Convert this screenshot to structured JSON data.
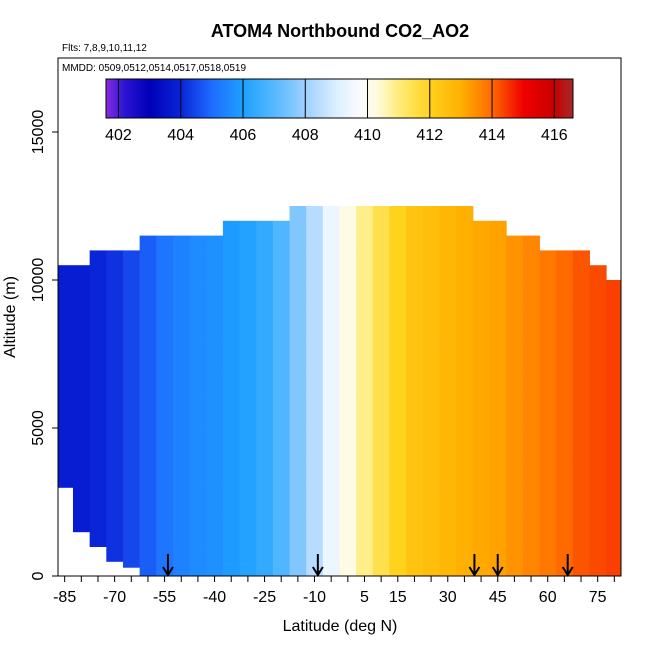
{
  "chart_data": {
    "type": "heatmap",
    "title": "ATOM4 Northbound CO2_AO2",
    "subtitle_flights": "Flts: 7,8,9,10,11,12",
    "subtitle_dates": "MMDD: 0509,0512,0514,0517,0518,0519",
    "xlabel": "Latitude (deg N)",
    "ylabel": "Altitude (m)",
    "xlim": [
      -87,
      82
    ],
    "ylim": [
      0,
      17500
    ],
    "x_ticks": [
      -85,
      -70,
      -55,
      -40,
      -25,
      -10,
      5,
      15,
      30,
      45,
      60,
      75
    ],
    "x_minor_ticks": [
      -80,
      -75,
      -65,
      -60,
      -50,
      -45,
      -35,
      -30,
      -20,
      -15,
      -5,
      0,
      10,
      20,
      25,
      35,
      40,
      50,
      55,
      65,
      70,
      80
    ],
    "y_ticks": [
      0,
      5000,
      10000,
      15000
    ],
    "colorbar": {
      "ticks": [
        402,
        404,
        406,
        408,
        410,
        412,
        414,
        416
      ],
      "range": [
        401.6,
        416.6
      ],
      "stops": [
        {
          "v": 401.6,
          "color": "#8a2be2"
        },
        {
          "v": 402.2,
          "color": "#2a14d4"
        },
        {
          "v": 403.0,
          "color": "#0000b8"
        },
        {
          "v": 404.0,
          "color": "#0a24d8"
        },
        {
          "v": 405.0,
          "color": "#1e6cff"
        },
        {
          "v": 406.0,
          "color": "#1ea0ff"
        },
        {
          "v": 407.0,
          "color": "#56b8ff"
        },
        {
          "v": 408.0,
          "color": "#9ed0ff"
        },
        {
          "v": 409.0,
          "color": "#dcefff"
        },
        {
          "v": 409.7,
          "color": "#f8fbff"
        },
        {
          "v": 410.3,
          "color": "#fffbe0"
        },
        {
          "v": 411.0,
          "color": "#ffec7a"
        },
        {
          "v": 412.0,
          "color": "#ffd21e"
        },
        {
          "v": 413.0,
          "color": "#ffb000"
        },
        {
          "v": 414.0,
          "color": "#ff6a00"
        },
        {
          "v": 415.0,
          "color": "#f00000"
        },
        {
          "v": 416.0,
          "color": "#c80000"
        },
        {
          "v": 416.6,
          "color": "#a52a2a"
        }
      ]
    },
    "profile_latitudes": [
      -85,
      -80,
      -75,
      -70,
      -65,
      -60,
      -55,
      -50,
      -45,
      -40,
      -35,
      -30,
      -25,
      -20,
      -15,
      -10,
      -5,
      0,
      5,
      10,
      15,
      20,
      25,
      30,
      35,
      40,
      45,
      50,
      55,
      60,
      65,
      70,
      75,
      80
    ],
    "profile_altitudes": [
      0,
      1000,
      2000,
      3000,
      4000,
      5000,
      6000,
      7000,
      8000,
      9000,
      10000,
      11000,
      12000
    ],
    "profile_coverage": [
      {
        "lat": -85,
        "alt_min": 3000,
        "alt_max": 10500
      },
      {
        "lat": -80,
        "alt_min": 1500,
        "alt_max": 10500
      },
      {
        "lat": -75,
        "alt_min": 1000,
        "alt_max": 11000
      },
      {
        "lat": -70,
        "alt_min": 500,
        "alt_max": 11000
      },
      {
        "lat": -65,
        "alt_min": 300,
        "alt_max": 11000
      },
      {
        "lat": -60,
        "alt_min": 0,
        "alt_max": 11500
      },
      {
        "lat": -55,
        "alt_min": 0,
        "alt_max": 11500
      },
      {
        "lat": -50,
        "alt_min": 0,
        "alt_max": 11500
      },
      {
        "lat": -45,
        "alt_min": 0,
        "alt_max": 11500
      },
      {
        "lat": -40,
        "alt_min": 0,
        "alt_max": 11500
      },
      {
        "lat": -35,
        "alt_min": 0,
        "alt_max": 12000
      },
      {
        "lat": -30,
        "alt_min": 0,
        "alt_max": 12000
      },
      {
        "lat": -25,
        "alt_min": 0,
        "alt_max": 12000
      },
      {
        "lat": -20,
        "alt_min": 0,
        "alt_max": 12000
      },
      {
        "lat": -15,
        "alt_min": 0,
        "alt_max": 12500
      },
      {
        "lat": -10,
        "alt_min": 0,
        "alt_max": 12500
      },
      {
        "lat": -5,
        "alt_min": 0,
        "alt_max": 12500
      },
      {
        "lat": 0,
        "alt_min": 0,
        "alt_max": 12500
      },
      {
        "lat": 5,
        "alt_min": 0,
        "alt_max": 12500
      },
      {
        "lat": 10,
        "alt_min": 0,
        "alt_max": 12500
      },
      {
        "lat": 15,
        "alt_min": 0,
        "alt_max": 12500
      },
      {
        "lat": 20,
        "alt_min": 0,
        "alt_max": 12500
      },
      {
        "lat": 25,
        "alt_min": 0,
        "alt_max": 12500
      },
      {
        "lat": 30,
        "alt_min": 0,
        "alt_max": 12500
      },
      {
        "lat": 35,
        "alt_min": 0,
        "alt_max": 12500
      },
      {
        "lat": 40,
        "alt_min": 0,
        "alt_max": 12000
      },
      {
        "lat": 45,
        "alt_min": 0,
        "alt_max": 12000
      },
      {
        "lat": 50,
        "alt_min": 0,
        "alt_max": 11500
      },
      {
        "lat": 55,
        "alt_min": 0,
        "alt_max": 11500
      },
      {
        "lat": 60,
        "alt_min": 0,
        "alt_max": 11000
      },
      {
        "lat": 65,
        "alt_min": 0,
        "alt_max": 11000
      },
      {
        "lat": 70,
        "alt_min": 0,
        "alt_max": 11000
      },
      {
        "lat": 75,
        "alt_min": 0,
        "alt_max": 10500
      },
      {
        "lat": 80,
        "alt_min": 0,
        "alt_max": 10000
      }
    ],
    "values_by_latitude": [
      [
        403.8,
        403.8,
        403.8,
        403.8,
        403.8,
        403.8,
        403.8,
        403.8,
        403.8,
        403.8,
        403.8,
        403.8,
        403.8
      ],
      [
        403.8,
        403.8,
        403.8,
        403.8,
        403.8,
        403.8,
        403.8,
        403.8,
        403.8,
        403.8,
        403.8,
        403.8,
        403.8
      ],
      [
        404.0,
        404.0,
        404.0,
        404.0,
        404.0,
        404.0,
        404.0,
        404.0,
        404.0,
        404.0,
        404.0,
        404.0,
        404.0
      ],
      [
        404.2,
        404.2,
        404.2,
        404.2,
        404.2,
        404.2,
        404.2,
        404.2,
        404.2,
        404.2,
        404.2,
        404.2,
        404.2
      ],
      [
        404.5,
        404.5,
        404.5,
        404.5,
        404.5,
        404.5,
        404.5,
        404.5,
        404.5,
        404.5,
        404.5,
        404.5,
        404.5
      ],
      [
        404.8,
        404.8,
        404.8,
        404.8,
        404.8,
        404.8,
        404.8,
        404.8,
        404.8,
        404.8,
        404.8,
        404.8,
        404.8
      ],
      [
        405.2,
        405.2,
        405.2,
        405.2,
        405.2,
        405.2,
        405.2,
        405.2,
        405.2,
        405.2,
        405.2,
        405.2,
        405.2
      ],
      [
        405.4,
        405.4,
        405.4,
        405.4,
        405.4,
        405.4,
        405.4,
        405.4,
        405.4,
        405.4,
        405.4,
        405.4,
        405.4
      ],
      [
        405.6,
        405.6,
        405.6,
        405.6,
        405.6,
        405.6,
        405.6,
        405.6,
        405.6,
        405.6,
        405.6,
        405.6,
        405.6
      ],
      [
        405.7,
        405.7,
        405.7,
        405.7,
        405.7,
        405.7,
        405.7,
        405.7,
        405.7,
        405.7,
        405.7,
        405.7,
        405.7
      ],
      [
        405.9,
        405.9,
        405.9,
        405.9,
        405.9,
        405.9,
        405.9,
        405.9,
        405.9,
        405.9,
        405.9,
        405.9,
        405.9
      ],
      [
        406.1,
        406.1,
        406.1,
        406.1,
        406.1,
        406.1,
        406.1,
        406.1,
        406.1,
        406.1,
        406.1,
        406.1,
        406.1
      ],
      [
        406.4,
        406.4,
        406.4,
        406.4,
        406.4,
        406.4,
        406.4,
        406.4,
        406.4,
        406.4,
        406.4,
        406.4,
        406.4
      ],
      [
        406.9,
        406.9,
        406.9,
        406.9,
        406.9,
        406.9,
        406.9,
        406.9,
        406.9,
        406.9,
        406.9,
        406.9,
        406.9
      ],
      [
        407.6,
        407.6,
        407.6,
        407.6,
        407.6,
        407.6,
        407.6,
        407.6,
        407.6,
        407.6,
        407.6,
        407.6,
        407.6
      ],
      [
        408.4,
        408.4,
        408.4,
        408.4,
        408.4,
        408.4,
        408.4,
        408.4,
        408.4,
        408.4,
        408.4,
        408.4,
        408.4
      ],
      [
        409.4,
        409.4,
        409.4,
        409.4,
        409.4,
        409.4,
        409.4,
        409.4,
        409.4,
        409.4,
        409.4,
        409.4,
        409.4
      ],
      [
        410.2,
        410.2,
        410.2,
        410.2,
        410.2,
        410.2,
        410.2,
        410.2,
        410.2,
        410.2,
        410.2,
        410.2,
        410.2
      ],
      [
        410.9,
        410.9,
        410.9,
        410.9,
        410.9,
        410.9,
        410.9,
        410.9,
        410.9,
        410.9,
        410.9,
        410.9,
        410.9
      ],
      [
        411.5,
        411.5,
        411.5,
        411.5,
        411.5,
        411.5,
        411.5,
        411.5,
        411.5,
        411.5,
        411.5,
        411.5,
        411.5
      ],
      [
        412.0,
        412.0,
        412.0,
        412.0,
        412.0,
        412.0,
        412.0,
        412.0,
        412.0,
        412.0,
        412.0,
        412.0,
        412.0
      ],
      [
        412.4,
        412.4,
        412.4,
        412.4,
        412.4,
        412.4,
        412.4,
        412.4,
        412.4,
        412.4,
        412.4,
        412.4,
        412.4
      ],
      [
        412.6,
        412.6,
        412.6,
        412.6,
        412.6,
        412.6,
        412.6,
        412.6,
        412.6,
        412.6,
        412.6,
        412.6,
        412.6
      ],
      [
        412.8,
        412.8,
        412.8,
        412.8,
        412.8,
        412.8,
        412.8,
        412.8,
        412.8,
        412.8,
        412.8,
        412.8,
        412.8
      ],
      [
        413.0,
        413.0,
        413.0,
        413.0,
        413.0,
        413.0,
        413.0,
        413.0,
        413.0,
        413.0,
        413.0,
        413.0,
        413.0
      ],
      [
        413.1,
        413.1,
        413.1,
        413.1,
        413.1,
        413.1,
        413.1,
        413.1,
        413.1,
        413.1,
        413.1,
        413.1,
        413.1
      ],
      [
        413.2,
        413.2,
        413.2,
        413.2,
        413.2,
        413.2,
        413.2,
        413.2,
        413.2,
        413.2,
        413.2,
        413.2,
        413.2
      ],
      [
        413.4,
        413.4,
        413.4,
        413.4,
        413.4,
        413.4,
        413.4,
        413.4,
        413.4,
        413.4,
        413.4,
        413.4,
        413.4
      ],
      [
        413.6,
        413.6,
        413.6,
        413.6,
        413.6,
        413.6,
        413.6,
        413.6,
        413.6,
        413.6,
        413.6,
        413.6,
        413.6
      ],
      [
        413.8,
        413.8,
        413.8,
        413.8,
        413.8,
        413.8,
        413.8,
        413.8,
        413.8,
        413.8,
        413.8,
        413.8,
        413.8
      ],
      [
        414.0,
        414.0,
        414.0,
        414.0,
        414.0,
        414.0,
        414.0,
        414.0,
        414.0,
        414.0,
        414.0,
        414.0,
        414.0
      ],
      [
        414.2,
        414.2,
        414.2,
        414.2,
        414.2,
        414.2,
        414.2,
        414.2,
        414.2,
        414.2,
        414.2,
        414.2,
        414.2
      ],
      [
        414.3,
        414.3,
        414.3,
        414.3,
        414.3,
        414.3,
        414.3,
        414.3,
        414.3,
        414.3,
        414.3,
        414.3,
        414.3
      ],
      [
        414.4,
        414.4,
        414.4,
        414.4,
        414.4,
        414.4,
        414.4,
        414.4,
        414.4,
        414.4,
        414.4,
        414.4,
        414.4
      ]
    ],
    "profile_marker_latitudes": [
      -54,
      -9,
      38,
      45,
      66
    ],
    "grid": false
  }
}
